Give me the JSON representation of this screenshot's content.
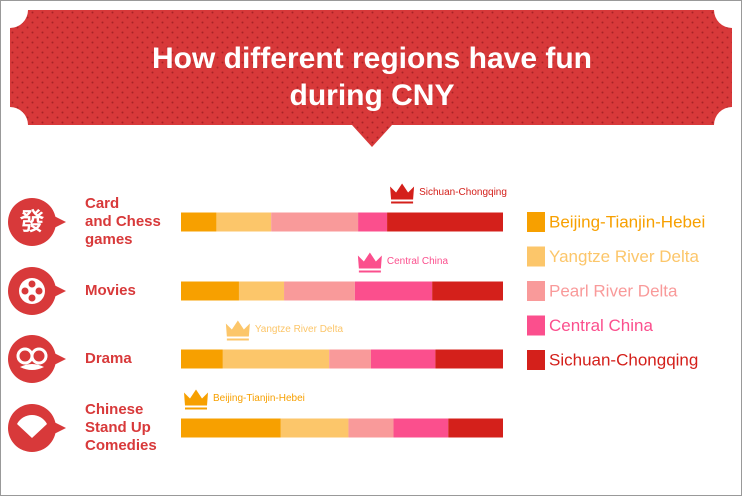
{
  "chart_data": {
    "type": "bar",
    "orientation": "horizontal",
    "stacked": true,
    "title": "How different regions have fun\nduring CNY",
    "icon_glyph": "發",
    "categories": [
      "Card\nand Chess\ngames",
      "Movies",
      "Drama",
      "Chinese\nStand Up\nComedies"
    ],
    "leaders": [
      "Sichuan-Chongqing",
      "Central China",
      "Yangtze River Delta",
      "Beijing-Tianjin-Hebei"
    ],
    "series": [
      {
        "name": "Beijing-Tianjin-Hebei",
        "color": "#f7a000",
        "values": [
          11,
          18,
          13,
          31
        ]
      },
      {
        "name": "Yangtze River Delta",
        "color": "#fcc66a",
        "values": [
          17,
          14,
          33,
          21
        ]
      },
      {
        "name": "Pearl River Delta",
        "color": "#f99a9a",
        "values": [
          27,
          22,
          13,
          14
        ]
      },
      {
        "name": "Central China",
        "color": "#fb4f8d",
        "values": [
          9,
          24,
          20,
          17
        ]
      },
      {
        "name": "Sichuan-Chongqing",
        "color": "#d4201b",
        "values": [
          36,
          22,
          21,
          17
        ]
      }
    ],
    "legend": "right"
  }
}
